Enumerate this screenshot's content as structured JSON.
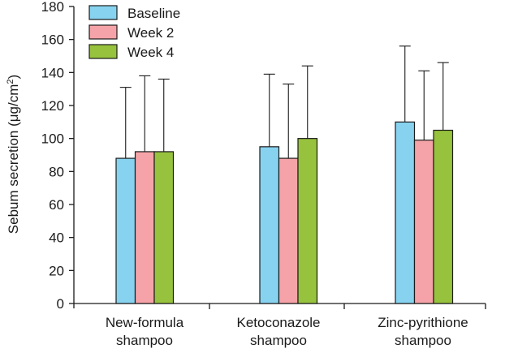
{
  "chart_data": {
    "type": "bar",
    "title": "",
    "xlabel": "",
    "ylabel": "Sebum secretion (μg/cm²)",
    "ylabel_parts": {
      "main": "Sebum secretion (μg/cm",
      "sup": "2",
      "close": ")"
    },
    "ylim": [
      0,
      180
    ],
    "yticks": [
      0,
      20,
      40,
      60,
      80,
      100,
      120,
      140,
      160,
      180
    ],
    "grid": false,
    "legend_position": "top-left",
    "categories": [
      {
        "line1": "New-formula",
        "line2": "shampoo"
      },
      {
        "line1": "Ketoconazole",
        "line2": "shampoo"
      },
      {
        "line1": "Zinc-pyrithione",
        "line2": "shampoo"
      }
    ],
    "series": [
      {
        "name": "Baseline",
        "color": "#87d3ef",
        "values": [
          88,
          95,
          110
        ],
        "errors": [
          43,
          44,
          46
        ]
      },
      {
        "name": "Week 2",
        "color": "#f5a3a8",
        "values": [
          92,
          88,
          99
        ],
        "errors": [
          46,
          45,
          42
        ]
      },
      {
        "name": "Week 4",
        "color": "#97c23d",
        "values": [
          92,
          100,
          105
        ],
        "errors": [
          44,
          44,
          41
        ]
      }
    ]
  }
}
